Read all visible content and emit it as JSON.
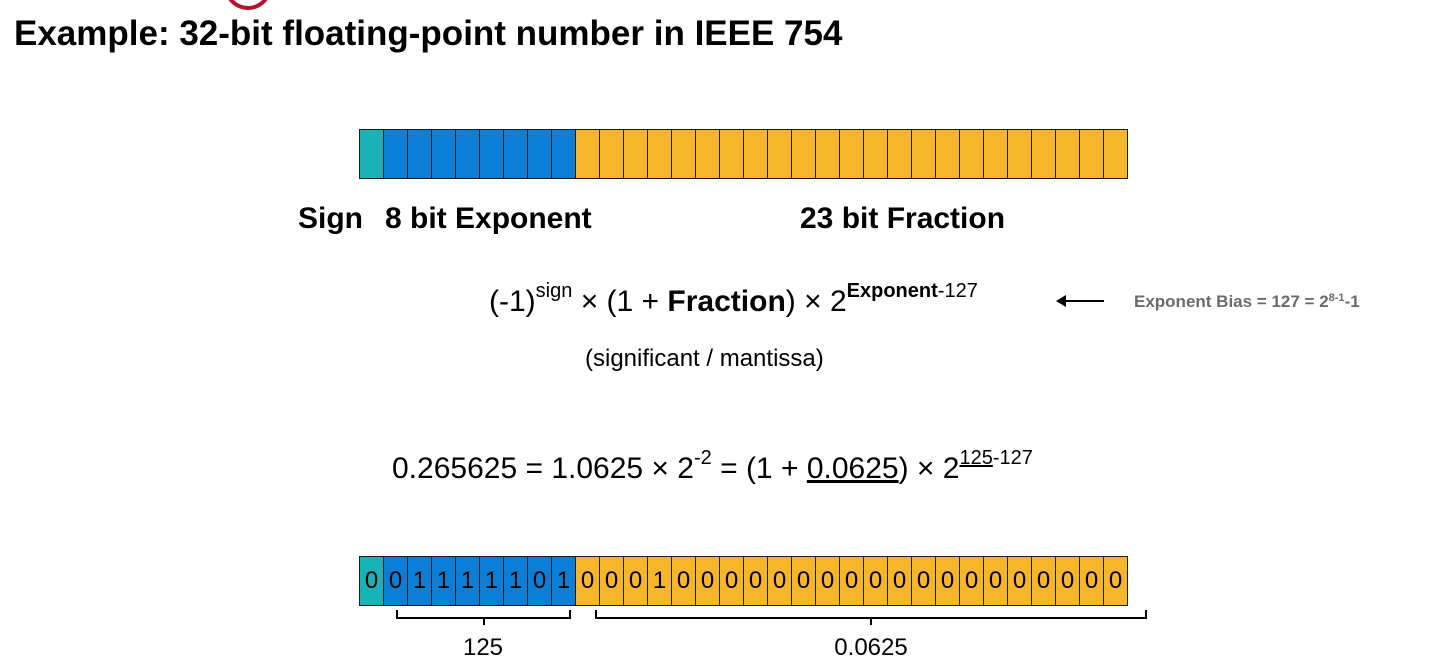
{
  "title": "Example: 32-bit floating-point number in IEEE 754",
  "colors": {
    "sign": "#19b2b5",
    "exponent": "#0a7fd5",
    "fraction": "#f7b52b",
    "bias_note": "#6b6b6b",
    "accent_mark": "#b5122b"
  },
  "labels": {
    "sign": "Sign",
    "exponent": "8 bit Exponent",
    "fraction": "23 bit Fraction"
  },
  "formula": {
    "base_neg": "(-1)",
    "sign_sup": "sign",
    "times1": " × (1 + ",
    "fraction": "Fraction",
    "times2": ") × 2",
    "exp_sup_bold": "Exponent",
    "exp_sup_rest": "-127"
  },
  "bias_note": {
    "prefix": "Exponent Bias = 127 = 2",
    "sup": "8-1",
    "suffix": "-1"
  },
  "mantissa_note": "(significant / mantissa)",
  "example": {
    "lhs": "0.265625 = 1.0625 × 2",
    "lhs_sup": "-2",
    "mid": " = (1 + ",
    "frac_value": "0.0625",
    "rhs": ") × 2",
    "rhs_sup_exp": "125",
    "rhs_sup_rest": "-127"
  },
  "bit_layout": {
    "sign_bits": 1,
    "exponent_bits": 8,
    "fraction_bits": 23
  },
  "bits": [
    "0",
    "0",
    "1",
    "1",
    "1",
    "1",
    "1",
    "0",
    "1",
    "0",
    "0",
    "0",
    "1",
    "0",
    "0",
    "0",
    "0",
    "0",
    "0",
    "0",
    "0",
    "0",
    "0",
    "0",
    "0",
    "0",
    "0",
    "0",
    "0",
    "0",
    "0",
    "0"
  ],
  "brace_labels": {
    "exponent": "125",
    "fraction": "0.0625"
  }
}
